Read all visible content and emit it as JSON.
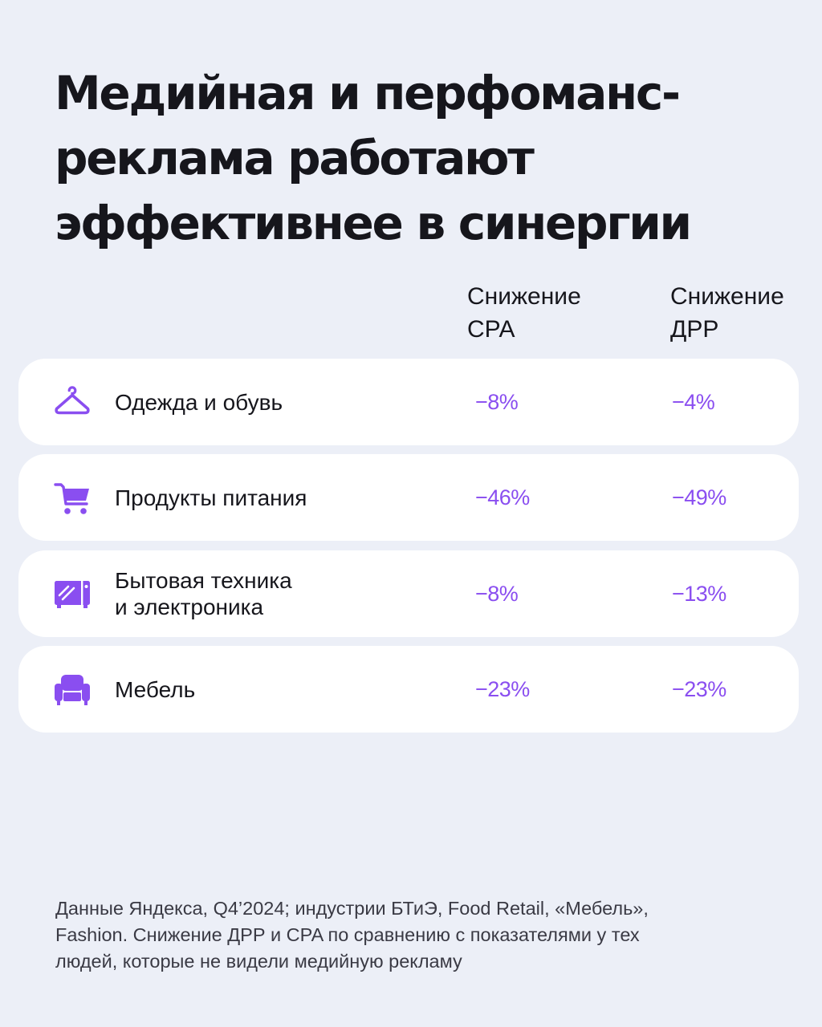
{
  "title_lines": [
    "Медийная и перфоманс-",
    "реклама работают",
    "эффективнее в синергии"
  ],
  "columns": {
    "cpa": [
      "Снижение",
      "CPA"
    ],
    "drr": [
      "Снижение",
      "ДРР"
    ]
  },
  "accent_color": "#8a4ef0",
  "rows": [
    {
      "icon": "hanger-icon",
      "label_lines": [
        "Одежда и обувь"
      ],
      "cpa": "−8%",
      "drr": "−4%"
    },
    {
      "icon": "shopping-cart-icon",
      "label_lines": [
        "Продукты питания"
      ],
      "cpa": "−46%",
      "drr": "−49%"
    },
    {
      "icon": "microwave-icon",
      "label_lines": [
        "Бытовая техника",
        "и электроника"
      ],
      "cpa": "−8%",
      "drr": "−13%"
    },
    {
      "icon": "armchair-icon",
      "label_lines": [
        "Мебель"
      ],
      "cpa": "−23%",
      "drr": "−23%"
    }
  ],
  "footnote_lines": [
    "Данные Яндекса, Q4’2024; индустрии БТиЭ, Food Retail, «Мебель»,",
    "Fashion. Снижение ДРР и CPA по сравнению с показателями у тех",
    "людей, которые не видели медийную рекламу"
  ]
}
